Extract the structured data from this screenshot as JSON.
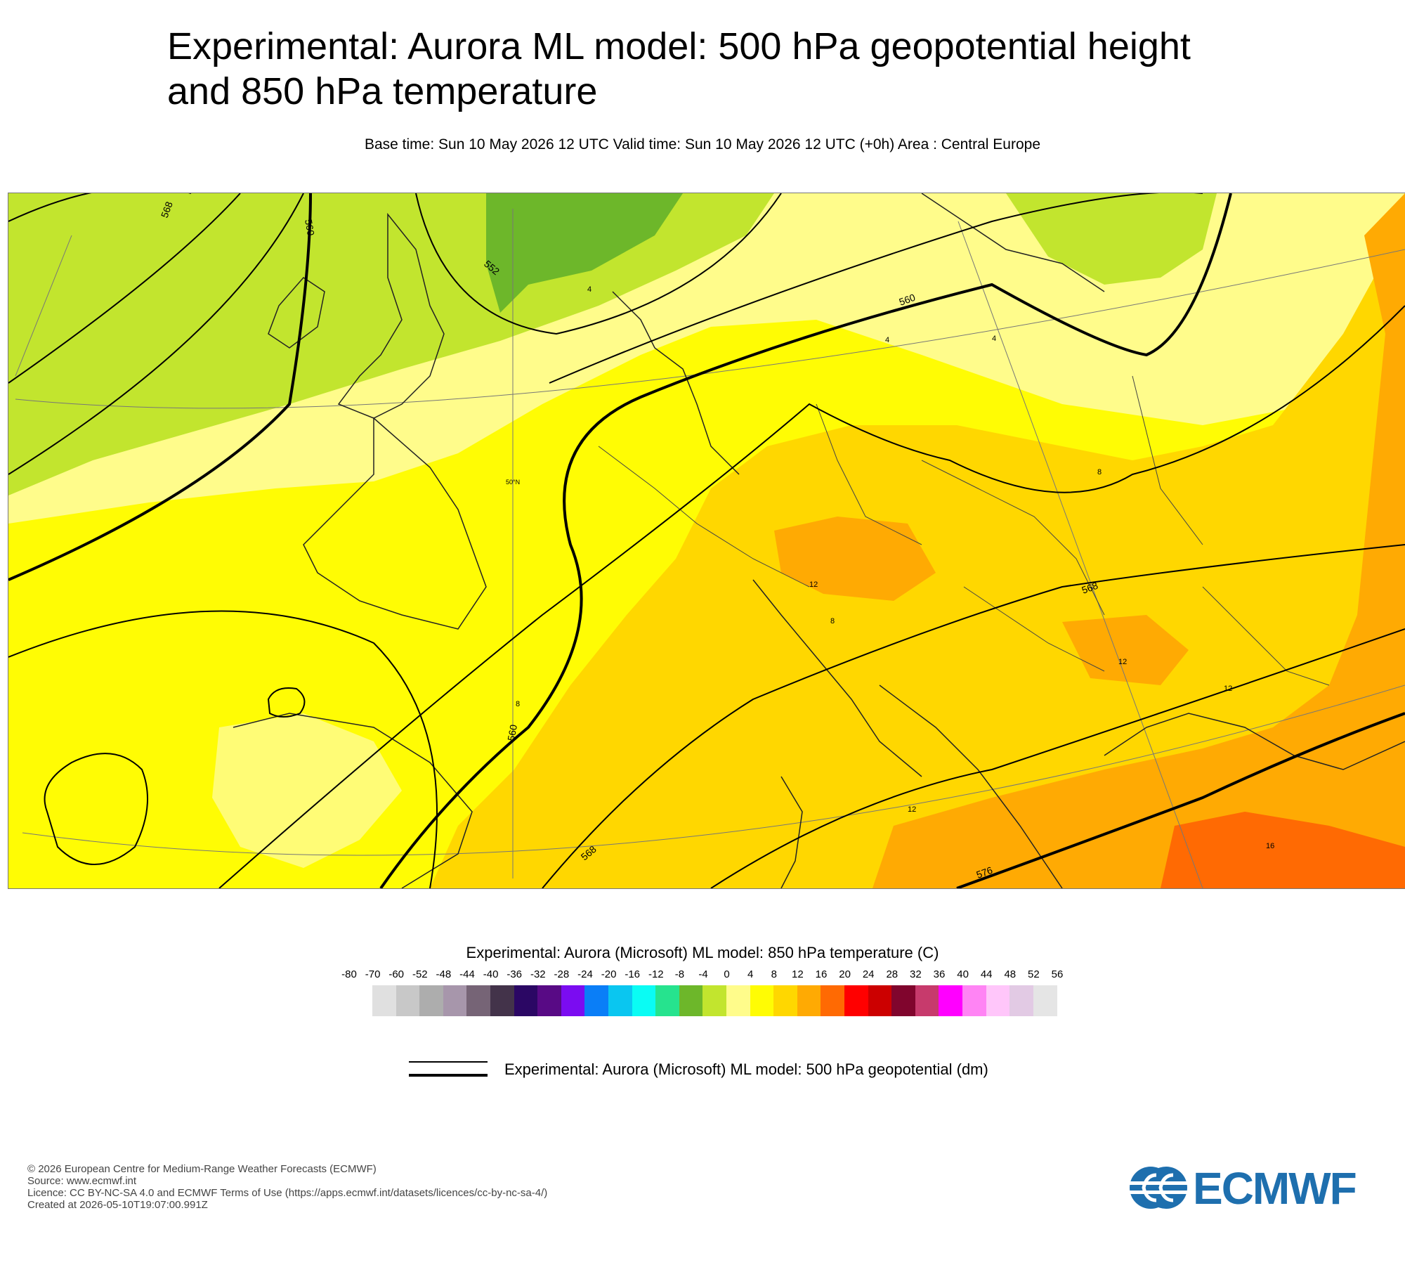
{
  "header": {
    "title_line1": "Experimental: Aurora ML model: 500 hPa geopotential height",
    "title_line2": "and 850 hPa temperature",
    "subtitle": "Base time: Sun 10 May 2026 12 UTC Valid time: Sun 10 May 2026 12 UTC (+0h) Area : Central Europe"
  },
  "map": {
    "area": "Central Europe",
    "latitude_label": "50°N",
    "contour_labels": [
      "568",
      "560",
      "552",
      "560",
      "568",
      "560",
      "568",
      "576"
    ],
    "temperature_labels": [
      "4",
      "4",
      "4",
      "8",
      "8",
      "12",
      "12",
      "12",
      "12",
      "8",
      "16"
    ]
  },
  "legend": {
    "temperature_title": "Experimental: Aurora (Microsoft) ML model: 850 hPa temperature (C)",
    "ticks": [
      "-80",
      "-70",
      "-60",
      "-52",
      "-48",
      "-44",
      "-40",
      "-36",
      "-32",
      "-28",
      "-24",
      "-20",
      "-16",
      "-12",
      "-8",
      "-4",
      "0",
      "4",
      "8",
      "12",
      "16",
      "20",
      "24",
      "28",
      "32",
      "36",
      "40",
      "44",
      "48",
      "52",
      "56"
    ],
    "colors": [
      "#e0e0e0",
      "#c8c8c8",
      "#adadad",
      "#a796ab",
      "#766476",
      "#43334a",
      "#2b0764",
      "#580a85",
      "#7b0cf1",
      "#0a7ef7",
      "#0ac6f0",
      "#0afcf4",
      "#26e38e",
      "#6db72a",
      "#c2e52e",
      "#fffc8b",
      "#fffc04",
      "#ffd700",
      "#ffaa03",
      "#ff6a03",
      "#ff0000",
      "#cc0000",
      "#80052d",
      "#c73a6c",
      "#ff00ff",
      "#ff84f4",
      "#ffc6fa",
      "#e2cae4",
      "#e5e5e5"
    ],
    "geopotential_label": "Experimental: Aurora (Microsoft) ML model: 500 hPa geopotential (dm)"
  },
  "footer": {
    "line1": "© 2026 European Centre for Medium-Range Weather Forecasts (ECMWF)",
    "line2": "Source: www.ecmwf.int",
    "line3": "Licence: CC BY-NC-SA 4.0 and ECMWF Terms of Use (https://apps.ecmwf.int/datasets/licences/cc-by-nc-sa-4/)",
    "line4": "Created at 2026-05-10T19:07:00.991Z"
  },
  "logo": {
    "text": "ECMWF",
    "color": "#1e6fae"
  }
}
